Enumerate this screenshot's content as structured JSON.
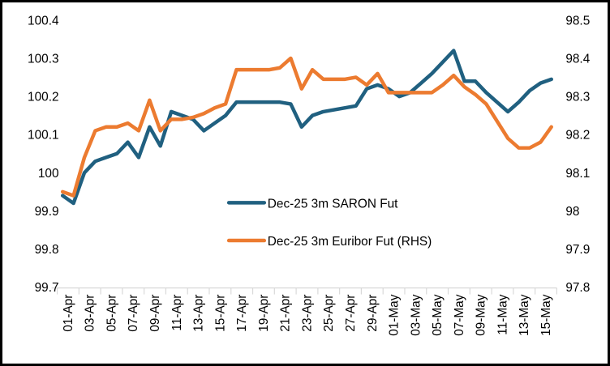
{
  "chart_data": {
    "type": "line",
    "title": "",
    "grid": false,
    "legend_position": "center-inside",
    "categories": [
      "01-Apr",
      "02-Apr",
      "03-Apr",
      "04-Apr",
      "05-Apr",
      "06-Apr",
      "07-Apr",
      "08-Apr",
      "09-Apr",
      "10-Apr",
      "11-Apr",
      "12-Apr",
      "13-Apr",
      "14-Apr",
      "15-Apr",
      "16-Apr",
      "17-Apr",
      "18-Apr",
      "19-Apr",
      "20-Apr",
      "21-Apr",
      "22-Apr",
      "23-Apr",
      "24-Apr",
      "25-Apr",
      "26-Apr",
      "27-Apr",
      "28-Apr",
      "29-Apr",
      "30-Apr",
      "01-May",
      "02-May",
      "03-May",
      "04-May",
      "05-May",
      "06-May",
      "07-May",
      "08-May",
      "09-May",
      "10-May",
      "11-May",
      "12-May",
      "13-May",
      "14-May",
      "15-May",
      "16-May"
    ],
    "x_tick_labels": [
      "01-Apr",
      "03-Apr",
      "05-Apr",
      "07-Apr",
      "09-Apr",
      "11-Apr",
      "13-Apr",
      "15-Apr",
      "17-Apr",
      "19-Apr",
      "21-Apr",
      "23-Apr",
      "25-Apr",
      "27-Apr",
      "29-Apr",
      "01-May",
      "03-May",
      "05-May",
      "07-May",
      "09-May",
      "11-May",
      "13-May",
      "15-May"
    ],
    "left_axis": {
      "min": 99.7,
      "max": 100.4,
      "ticks": [
        "100.4",
        "100.3",
        "100.2",
        "100.1",
        "100",
        "99.9",
        "99.8",
        "99.7"
      ]
    },
    "right_axis": {
      "min": 97.8,
      "max": 98.5,
      "ticks": [
        "98.5",
        "98.4",
        "98.3",
        "98.2",
        "98.1",
        "98",
        "97.9",
        "97.8"
      ]
    },
    "series": [
      {
        "name": "Dec-25 3m SARON Fut",
        "axis": "left",
        "color": "#206080",
        "values": [
          99.94,
          99.92,
          100.0,
          100.03,
          100.04,
          100.05,
          100.08,
          100.04,
          100.12,
          100.07,
          100.16,
          100.15,
          100.14,
          100.11,
          100.13,
          100.15,
          100.185,
          100.185,
          100.185,
          100.185,
          100.185,
          100.18,
          100.12,
          100.15,
          100.16,
          100.165,
          100.17,
          100.175,
          100.22,
          100.23,
          100.22,
          100.2,
          100.21,
          100.235,
          100.26,
          100.29,
          100.32,
          100.24,
          100.24,
          100.21,
          100.185,
          100.16,
          100.185,
          100.215,
          100.235,
          100.245
        ]
      },
      {
        "name": "Dec-25 3m Euribor Fut (RHS)",
        "axis": "right",
        "color": "#ec7b30",
        "values": [
          98.05,
          98.04,
          98.14,
          98.21,
          98.22,
          98.22,
          98.23,
          98.21,
          98.29,
          98.21,
          98.24,
          98.24,
          98.245,
          98.255,
          98.27,
          98.28,
          98.37,
          98.37,
          98.37,
          98.37,
          98.375,
          98.4,
          98.32,
          98.37,
          98.345,
          98.345,
          98.345,
          98.35,
          98.33,
          98.36,
          98.31,
          98.31,
          98.31,
          98.31,
          98.31,
          98.33,
          98.355,
          98.325,
          98.305,
          98.28,
          98.235,
          98.19,
          98.165,
          98.165,
          98.18,
          98.22
        ]
      }
    ]
  },
  "legend": {
    "saron_label": "Dec-25 3m SARON Fut",
    "euribor_label": "Dec-25 3m Euribor Fut (RHS)"
  },
  "colors": {
    "saron_line": "#206080",
    "euribor_line": "#ec7b30",
    "axis_line": "#d9d9d9",
    "text": "#000000",
    "background": "#ffffff",
    "frame_border": "#000000"
  }
}
